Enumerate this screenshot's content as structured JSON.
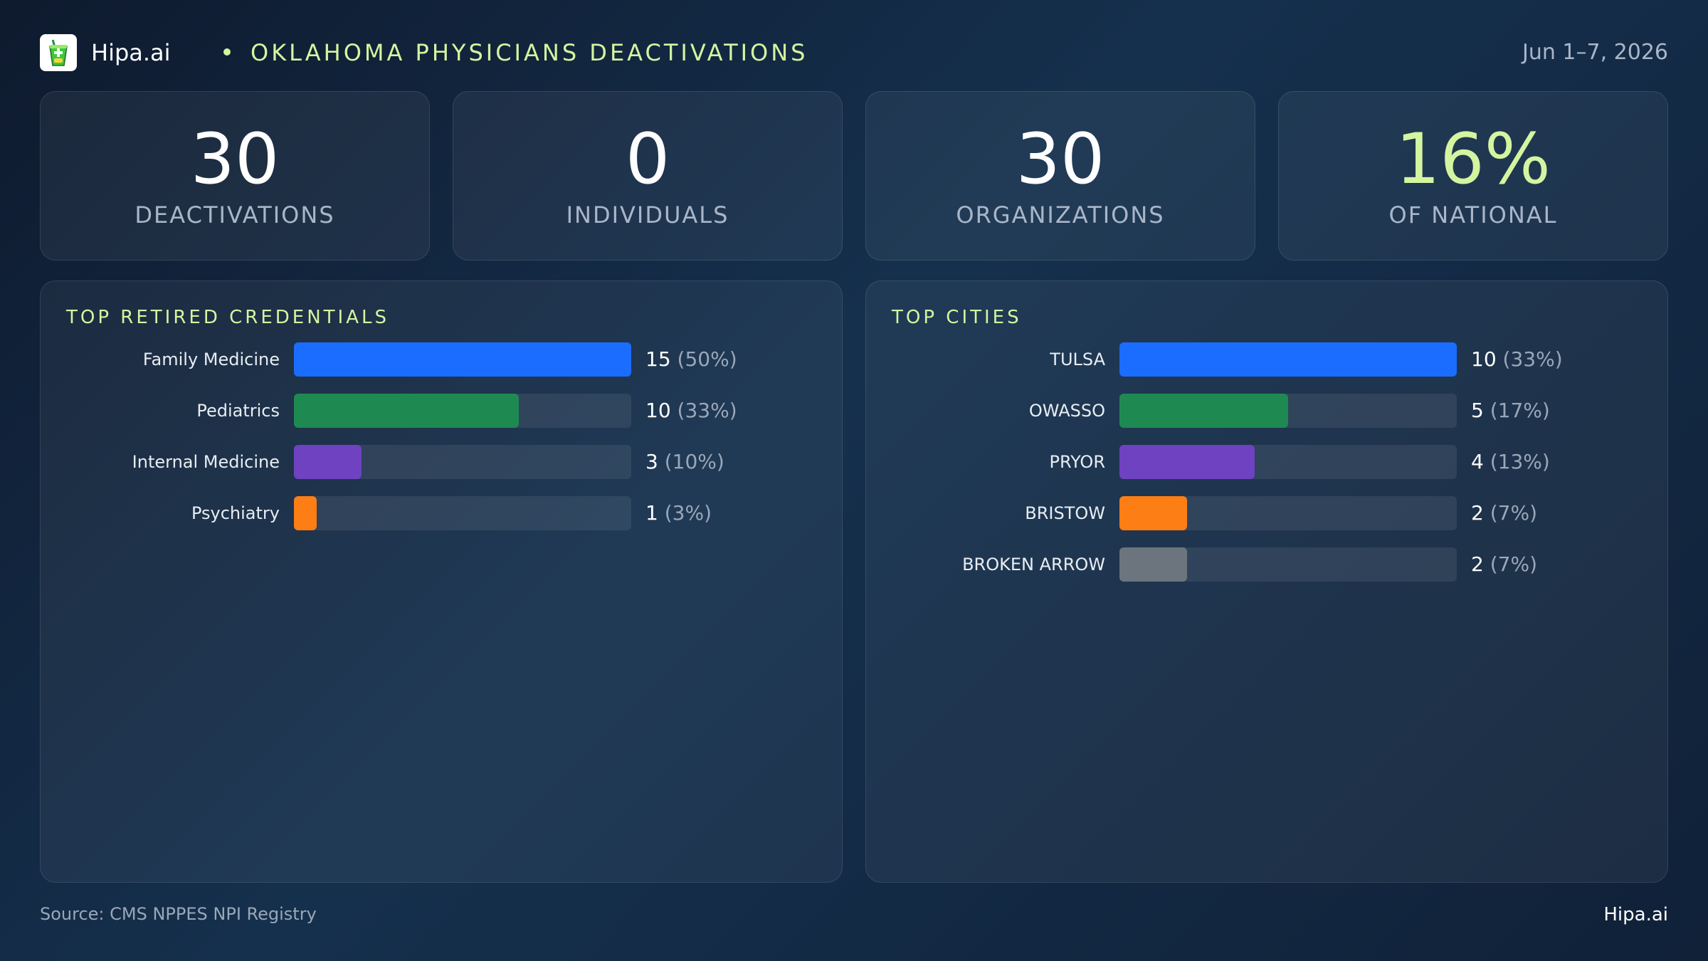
{
  "header": {
    "brand": "Hipa.ai",
    "title": "OKLAHOMA PHYSICIANS DEACTIVATIONS",
    "date": "Jun 1–7, 2026",
    "logo_icon": "cup-icon"
  },
  "stats": [
    {
      "value": "30",
      "label": "DEACTIVATIONS",
      "accent": false
    },
    {
      "value": "0",
      "label": "INDIVIDUALS",
      "accent": false
    },
    {
      "value": "30",
      "label": "ORGANIZATIONS",
      "accent": false
    },
    {
      "value": "16%",
      "label": "OF NATIONAL",
      "accent": true
    }
  ],
  "chart_data": [
    {
      "type": "bar",
      "orientation": "horizontal",
      "title": "TOP RETIRED CREDENTIALS",
      "max": 15,
      "categories": [
        "Family Medicine",
        "Pediatrics",
        "Internal Medicine",
        "Psychiatry"
      ],
      "values": [
        15,
        10,
        3,
        1
      ],
      "percents": [
        "(50%)",
        "(33%)",
        "(10%)",
        "(3%)"
      ],
      "colors": [
        "#1a6dff",
        "#1e8a52",
        "#6f42c1",
        "#fd7e14"
      ]
    },
    {
      "type": "bar",
      "orientation": "horizontal",
      "title": "TOP CITIES",
      "max": 10,
      "categories": [
        "TULSA",
        "OWASSO",
        "PRYOR",
        "BRISTOW",
        "BROKEN ARROW"
      ],
      "values": [
        10,
        5,
        4,
        2,
        2
      ],
      "percents": [
        "(33%)",
        "(17%)",
        "(13%)",
        "(7%)",
        "(7%)"
      ],
      "colors": [
        "#1a6dff",
        "#1e8a52",
        "#6f42c1",
        "#fd7e14",
        "#6c757d"
      ]
    }
  ],
  "footer": {
    "source": "Source: CMS NPPES NPI Registry",
    "brand": "Hipa.ai"
  }
}
